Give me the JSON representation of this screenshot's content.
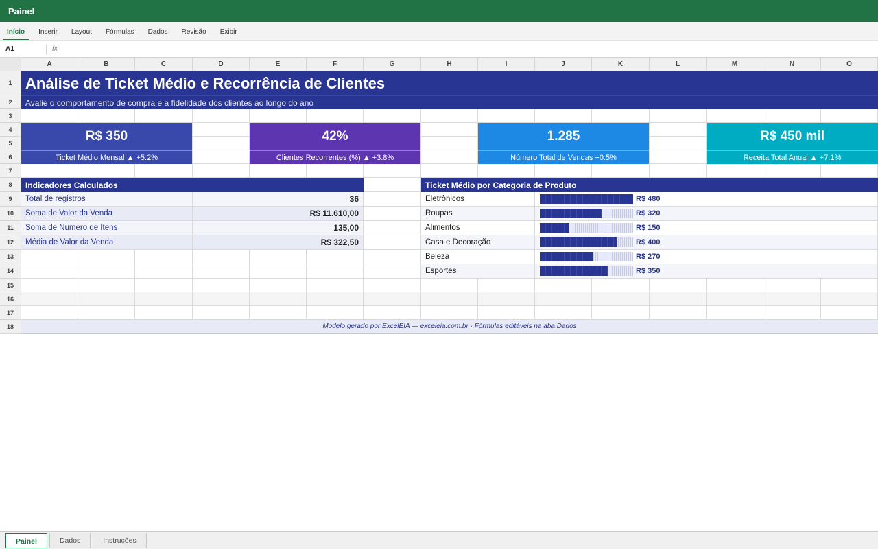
{
  "window": {
    "title": "Painel"
  },
  "ribbon": {
    "tabs": [
      "Início",
      "Inserir",
      "Layout",
      "Fórmulas",
      "Dados",
      "Revisão",
      "Exibir"
    ],
    "active_tab": "Início"
  },
  "formula_bar": {
    "cell_ref": "A1",
    "fx_label": "fx",
    "formula": ""
  },
  "columns": [
    "A",
    "B",
    "C",
    "D",
    "E",
    "F",
    "G",
    "H",
    "I",
    "J",
    "K",
    "L",
    "M",
    "N",
    "O"
  ],
  "rows": [
    "1",
    "2",
    "3",
    "4",
    "5",
    "6",
    "7",
    "8",
    "9",
    "10",
    "11",
    "12",
    "13",
    "14",
    "15",
    "16",
    "17",
    "18"
  ],
  "header": {
    "title": "Análise de Ticket Médio e Recorrência de Clientes",
    "subtitle": "Avalie o comportamento de compra e a fidelidade dos clientes ao longo do ano"
  },
  "kpis": [
    {
      "value": "R$ 350",
      "label": "Ticket Médio Mensal ▲ +5.2%",
      "color": "#3949ab"
    },
    {
      "value": "42%",
      "label": "Clientes Recorrentes (%) ▲ +3.8%",
      "color": "#5e35b1"
    },
    {
      "value": "1.285",
      "label": "Número Total de Vendas +0.5%",
      "color": "#1e88e5"
    },
    {
      "value": "R$ 450 mil",
      "label": "Receita Total Anual ▲ +7.1%",
      "color": "#00acc1"
    }
  ],
  "indicators": {
    "title": "Indicadores Calculados",
    "items": [
      {
        "label": "Total de registros",
        "value": "36"
      },
      {
        "label": "Soma de Valor da Venda",
        "value": "R$ 11.610,00"
      },
      {
        "label": "Soma de Número de Itens",
        "value": "135,00"
      },
      {
        "label": "Média de Valor da Venda",
        "value": "R$ 322,50"
      }
    ]
  },
  "chart_data": {
    "type": "bar",
    "title": "Ticket Médio por Categoria de Produto",
    "categories": [
      "Eletrônicos",
      "Roupas",
      "Alimentos",
      "Casa e Decoração",
      "Beleza",
      "Esportes"
    ],
    "values": [
      480,
      320,
      150,
      400,
      270,
      350
    ],
    "value_labels": [
      "R$ 480",
      "R$ 320",
      "R$ 150",
      "R$ 400",
      "R$ 270",
      "R$ 350"
    ],
    "xlim": [
      0,
      480
    ],
    "bar_color": "#283593"
  },
  "footer": {
    "text": "Modelo gerado por ExcelEIA — exceleia.com.br · Fórmulas editáveis na aba Dados"
  },
  "sheet_tabs": [
    "Painel",
    "Dados",
    "Instruções"
  ],
  "active_sheet": "Painel",
  "colors": {
    "brand": "#217346",
    "header": "#283593"
  }
}
